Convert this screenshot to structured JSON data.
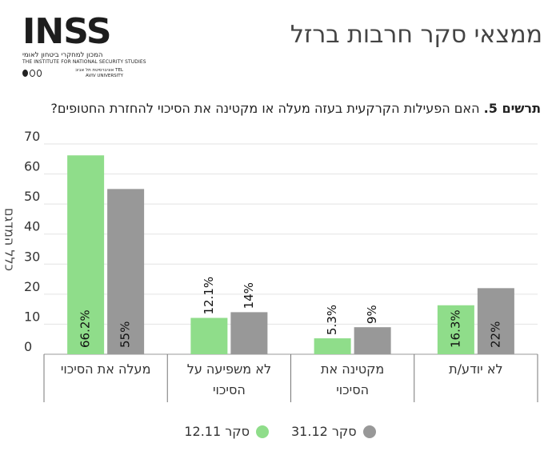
{
  "header": {
    "title": "ממצאי סקר חרבות ברזל"
  },
  "logo": {
    "wordmark": "INSS",
    "hebrew_name": "המכון למחקרי ביטחון לאומי",
    "english_name": "THE INSTITUTE FOR NATIONAL SECURITY STUDIES",
    "university": "אוניברסיטת תל אביב TEL AVIV UNIVERSITY"
  },
  "question": {
    "label": "תרשים 5.",
    "text": "האם הפעילות הקרקעית בעזה מעלה או מקטינה את הסיכוי להחזרת החטופים?"
  },
  "chart_data": {
    "type": "bar",
    "categories": [
      "מעלה את הסיכוי",
      "לא משפיעה על הסיכוי",
      "מקטינה את הסיכוי",
      "לא יודע/ת"
    ],
    "series": [
      {
        "name": "סקר 12.11",
        "values": [
          66.2,
          12.1,
          5.3,
          16.3
        ],
        "labels": [
          "66.2%",
          "12.1%",
          "5.3%",
          "16.3%"
        ],
        "color": "#8fdd8a"
      },
      {
        "name": "סקר 31.12",
        "values": [
          55,
          14,
          9,
          22
        ],
        "labels": [
          "55%",
          "14%",
          "9%",
          "22%"
        ],
        "color": "#989898"
      }
    ],
    "ylabel": "כלל המדגם",
    "ylim": [
      0,
      70
    ],
    "yticks": [
      0,
      10,
      20,
      30,
      40,
      50,
      60,
      70
    ],
    "grid": true,
    "legend_position": "bottom"
  }
}
